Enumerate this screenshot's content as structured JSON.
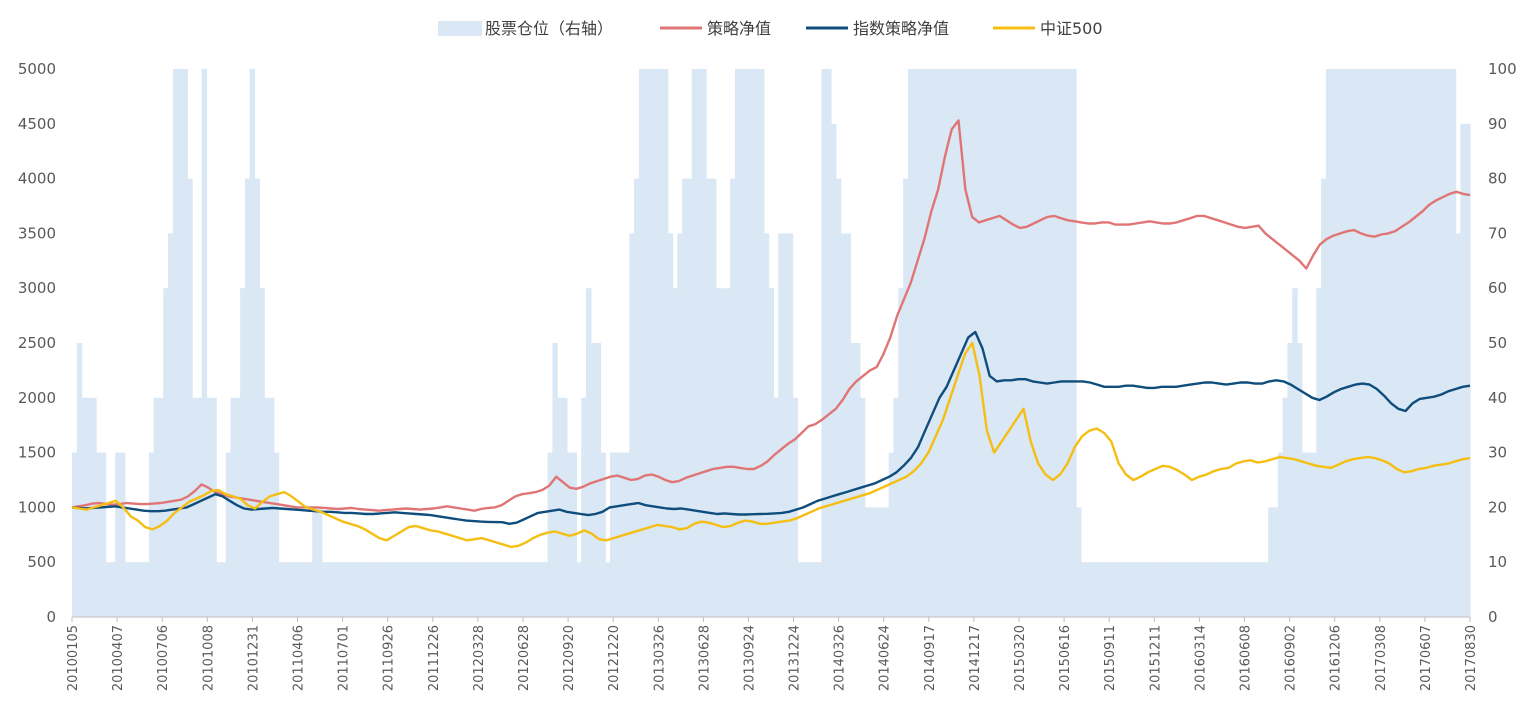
{
  "chart_data": {
    "type": "line",
    "title": "",
    "xlabel": "",
    "ylabel": "",
    "y2label": "",
    "ylim": [
      0,
      5000
    ],
    "y2lim": [
      0,
      100
    ],
    "y_ticks": [
      "0",
      "500",
      "1000",
      "1500",
      "2000",
      "2500",
      "3000",
      "3500",
      "4000",
      "4500",
      "5000"
    ],
    "y2_ticks": [
      "0",
      "10",
      "20",
      "30",
      "40",
      "50",
      "60",
      "70",
      "80",
      "90",
      "100"
    ],
    "x_tick_labels": [
      "20100105",
      "20100407",
      "20100706",
      "20101008",
      "20101231",
      "20110406",
      "20110701",
      "20110926",
      "20111226",
      "20120328",
      "20120628",
      "20120920",
      "20121220",
      "20130326",
      "20130628",
      "20130924",
      "20131224",
      "20140326",
      "20140624",
      "20140917",
      "20141217",
      "20150320",
      "20150616",
      "20150911",
      "20151211",
      "20160314",
      "20160608",
      "20160902",
      "20161206",
      "20170308",
      "20170607",
      "20170830"
    ],
    "grid": false,
    "legend_position": "top",
    "legend": [
      {
        "label": "股票仓位（右轴）",
        "color": "#dae7f4",
        "kind": "area"
      },
      {
        "label": "策略净值",
        "color": "#e07575",
        "kind": "line"
      },
      {
        "label": "指数策略净值",
        "color": "#0e4d7c",
        "kind": "line"
      },
      {
        "label": "中证500",
        "color": "#f5be12",
        "kind": "line"
      }
    ],
    "series": [
      {
        "name": "股票仓位（右轴）",
        "axis": "right",
        "chart_type": "area",
        "color": "#dae7f4",
        "values": [
          30,
          50,
          40,
          40,
          40,
          30,
          30,
          10,
          10,
          30,
          30,
          10,
          10,
          10,
          10,
          10,
          30,
          40,
          40,
          60,
          70,
          100,
          100,
          100,
          80,
          40,
          40,
          100,
          40,
          40,
          10,
          10,
          30,
          40,
          40,
          60,
          80,
          100,
          80,
          60,
          40,
          40,
          30,
          10,
          10,
          10,
          10,
          10,
          10,
          10,
          20,
          20,
          10,
          10,
          10,
          10,
          10,
          10,
          10,
          10,
          10,
          10,
          10,
          10,
          10,
          10,
          10,
          10,
          10,
          10,
          10,
          10,
          10,
          10,
          10,
          10,
          10,
          10,
          10,
          10,
          10,
          10,
          10,
          10,
          10,
          10,
          10,
          10,
          10,
          10,
          10,
          10,
          10,
          10,
          10,
          10,
          10,
          10,
          10,
          30,
          50,
          40,
          40,
          30,
          30,
          10,
          40,
          60,
          50,
          50,
          30,
          10,
          30,
          30,
          30,
          30,
          70,
          80,
          100,
          100,
          100,
          100,
          100,
          100,
          70,
          60,
          70,
          80,
          80,
          100,
          100,
          100,
          80,
          80,
          60,
          60,
          60,
          80,
          100,
          100,
          100,
          100,
          100,
          100,
          70,
          60,
          40,
          70,
          70,
          70,
          40,
          10,
          10,
          10,
          10,
          10,
          100,
          100,
          90,
          80,
          70,
          70,
          50,
          50,
          40,
          20,
          20,
          20,
          20,
          20,
          30,
          40,
          60,
          80,
          100,
          100,
          100,
          100,
          100,
          100,
          100,
          100,
          100,
          100,
          100,
          100,
          100,
          100,
          100,
          100,
          100,
          100,
          100,
          100,
          100,
          100,
          100,
          100,
          100,
          100,
          100,
          100,
          100,
          100,
          100,
          100,
          100,
          100,
          100,
          20,
          10,
          10,
          10,
          10,
          10,
          10,
          10,
          10,
          10,
          10,
          10,
          10,
          10,
          10,
          10,
          10,
          10,
          10,
          10,
          10,
          10,
          10,
          10,
          10,
          10,
          10,
          10,
          10,
          10,
          10,
          10,
          10,
          10,
          10,
          10,
          10,
          10,
          10,
          10,
          20,
          20,
          30,
          40,
          50,
          60,
          50,
          30,
          30,
          30,
          60,
          80,
          100,
          100,
          100,
          100,
          100,
          100,
          100,
          100,
          100,
          100,
          100,
          100,
          100,
          100,
          100,
          100,
          100,
          100,
          100,
          100,
          100,
          100,
          100,
          100,
          100,
          100,
          100,
          70,
          90,
          90
        ]
      },
      {
        "name": "策略净值",
        "axis": "left",
        "color": "#e07575",
        "values": [
          1000,
          1010,
          1020,
          1035,
          1040,
          1030,
          1025,
          1030,
          1040,
          1035,
          1030,
          1030,
          1035,
          1040,
          1050,
          1060,
          1070,
          1100,
          1150,
          1210,
          1180,
          1140,
          1120,
          1100,
          1090,
          1080,
          1070,
          1060,
          1050,
          1040,
          1030,
          1020,
          1010,
          1000,
          1000,
          1000,
          1000,
          995,
          990,
          985,
          990,
          995,
          985,
          980,
          975,
          970,
          975,
          980,
          985,
          990,
          985,
          980,
          985,
          990,
          1000,
          1010,
          1000,
          990,
          980,
          970,
          985,
          995,
          1000,
          1020,
          1060,
          1100,
          1120,
          1130,
          1140,
          1160,
          1200,
          1280,
          1230,
          1180,
          1170,
          1190,
          1220,
          1240,
          1260,
          1280,
          1290,
          1270,
          1250,
          1260,
          1290,
          1300,
          1280,
          1250,
          1230,
          1240,
          1270,
          1290,
          1310,
          1330,
          1350,
          1360,
          1370,
          1370,
          1360,
          1350,
          1350,
          1380,
          1420,
          1480,
          1530,
          1580,
          1620,
          1680,
          1740,
          1760,
          1800,
          1850,
          1900,
          1980,
          2080,
          2150,
          2200,
          2250,
          2280,
          2400,
          2550,
          2750,
          2900,
          3050,
          3250,
          3450,
          3700,
          3900,
          4200,
          4450,
          4530,
          3900,
          3650,
          3600,
          3620,
          3640,
          3660,
          3620,
          3580,
          3550,
          3560,
          3590,
          3620,
          3650,
          3660,
          3640,
          3620,
          3610,
          3600,
          3590,
          3590,
          3600,
          3600,
          3580,
          3580,
          3580,
          3590,
          3600,
          3610,
          3600,
          3590,
          3590,
          3600,
          3620,
          3640,
          3660,
          3660,
          3640,
          3620,
          3600,
          3580,
          3560,
          3550,
          3560,
          3570,
          3500,
          3450,
          3400,
          3350,
          3300,
          3250,
          3180,
          3300,
          3400,
          3450,
          3480,
          3500,
          3520,
          3530,
          3500,
          3480,
          3470,
          3490,
          3500,
          3520,
          3560,
          3600,
          3650,
          3700,
          3760,
          3800,
          3830,
          3860,
          3880,
          3860,
          3850
        ]
      },
      {
        "name": "指数策略净值",
        "axis": "left",
        "color": "#0e4d7c",
        "values": [
          1000,
          995,
          990,
          995,
          1000,
          1005,
          1010,
          1000,
          990,
          980,
          970,
          965,
          965,
          970,
          980,
          990,
          1000,
          1030,
          1060,
          1090,
          1120,
          1100,
          1060,
          1020,
          990,
          980,
          985,
          990,
          995,
          990,
          985,
          980,
          975,
          970,
          965,
          960,
          960,
          955,
          950,
          950,
          945,
          940,
          940,
          945,
          950,
          955,
          950,
          945,
          940,
          935,
          930,
          920,
          910,
          900,
          890,
          880,
          875,
          870,
          868,
          866,
          865,
          850,
          860,
          890,
          920,
          950,
          960,
          970,
          980,
          960,
          950,
          940,
          930,
          940,
          960,
          1000,
          1010,
          1020,
          1030,
          1040,
          1020,
          1010,
          1000,
          990,
          985,
          990,
          980,
          970,
          960,
          950,
          940,
          945,
          940,
          935,
          935,
          938,
          940,
          942,
          945,
          950,
          960,
          980,
          1000,
          1030,
          1060,
          1080,
          1100,
          1120,
          1140,
          1160,
          1180,
          1200,
          1220,
          1250,
          1280,
          1320,
          1380,
          1450,
          1550,
          1700,
          1850,
          2000,
          2100,
          2250,
          2400,
          2550,
          2600,
          2450,
          2200,
          2150,
          2160,
          2160,
          2170,
          2170,
          2150,
          2140,
          2130,
          2140,
          2150,
          2150,
          2150,
          2150,
          2140,
          2120,
          2100,
          2100,
          2100,
          2110,
          2110,
          2100,
          2090,
          2090,
          2100,
          2100,
          2100,
          2110,
          2120,
          2130,
          2140,
          2140,
          2130,
          2120,
          2130,
          2140,
          2140,
          2130,
          2130,
          2150,
          2160,
          2150,
          2120,
          2080,
          2040,
          2000,
          1980,
          2010,
          2050,
          2080,
          2100,
          2120,
          2130,
          2120,
          2080,
          2020,
          1950,
          1900,
          1880,
          1950,
          1990,
          2000,
          2010,
          2030,
          2060,
          2080,
          2100,
          2110
        ]
      },
      {
        "name": "中证500",
        "axis": "left",
        "color": "#f5be12",
        "values": [
          1000,
          990,
          980,
          1000,
          1020,
          1040,
          1060,
          1000,
          920,
          880,
          820,
          800,
          830,
          880,
          950,
          1000,
          1050,
          1080,
          1110,
          1150,
          1160,
          1120,
          1100,
          1080,
          1020,
          990,
          1050,
          1100,
          1120,
          1140,
          1100,
          1050,
          1000,
          980,
          960,
          930,
          900,
          870,
          850,
          830,
          800,
          760,
          720,
          700,
          740,
          780,
          820,
          830,
          810,
          790,
          780,
          760,
          740,
          720,
          700,
          710,
          720,
          700,
          680,
          660,
          640,
          650,
          680,
          720,
          750,
          770,
          780,
          760,
          740,
          760,
          790,
          760,
          710,
          700,
          720,
          740,
          760,
          780,
          800,
          820,
          840,
          830,
          820,
          800,
          810,
          850,
          870,
          860,
          840,
          820,
          830,
          860,
          880,
          870,
          850,
          850,
          860,
          870,
          880,
          900,
          930,
          960,
          990,
          1010,
          1030,
          1050,
          1070,
          1090,
          1110,
          1130,
          1160,
          1190,
          1220,
          1250,
          1280,
          1330,
          1400,
          1500,
          1650,
          1800,
          2000,
          2200,
          2400,
          2500,
          2200,
          1700,
          1500,
          1600,
          1700,
          1800,
          1900,
          1600,
          1400,
          1300,
          1250,
          1300,
          1400,
          1550,
          1650,
          1700,
          1720,
          1680,
          1600,
          1400,
          1300,
          1250,
          1280,
          1320,
          1350,
          1380,
          1370,
          1340,
          1300,
          1250,
          1280,
          1300,
          1330,
          1350,
          1360,
          1400,
          1420,
          1430,
          1410,
          1420,
          1440,
          1460,
          1450,
          1440,
          1420,
          1400,
          1380,
          1370,
          1360,
          1390,
          1420,
          1440,
          1450,
          1460,
          1450,
          1430,
          1400,
          1350,
          1320,
          1330,
          1350,
          1360,
          1380,
          1390,
          1400,
          1420,
          1440,
          1450
        ]
      }
    ]
  }
}
